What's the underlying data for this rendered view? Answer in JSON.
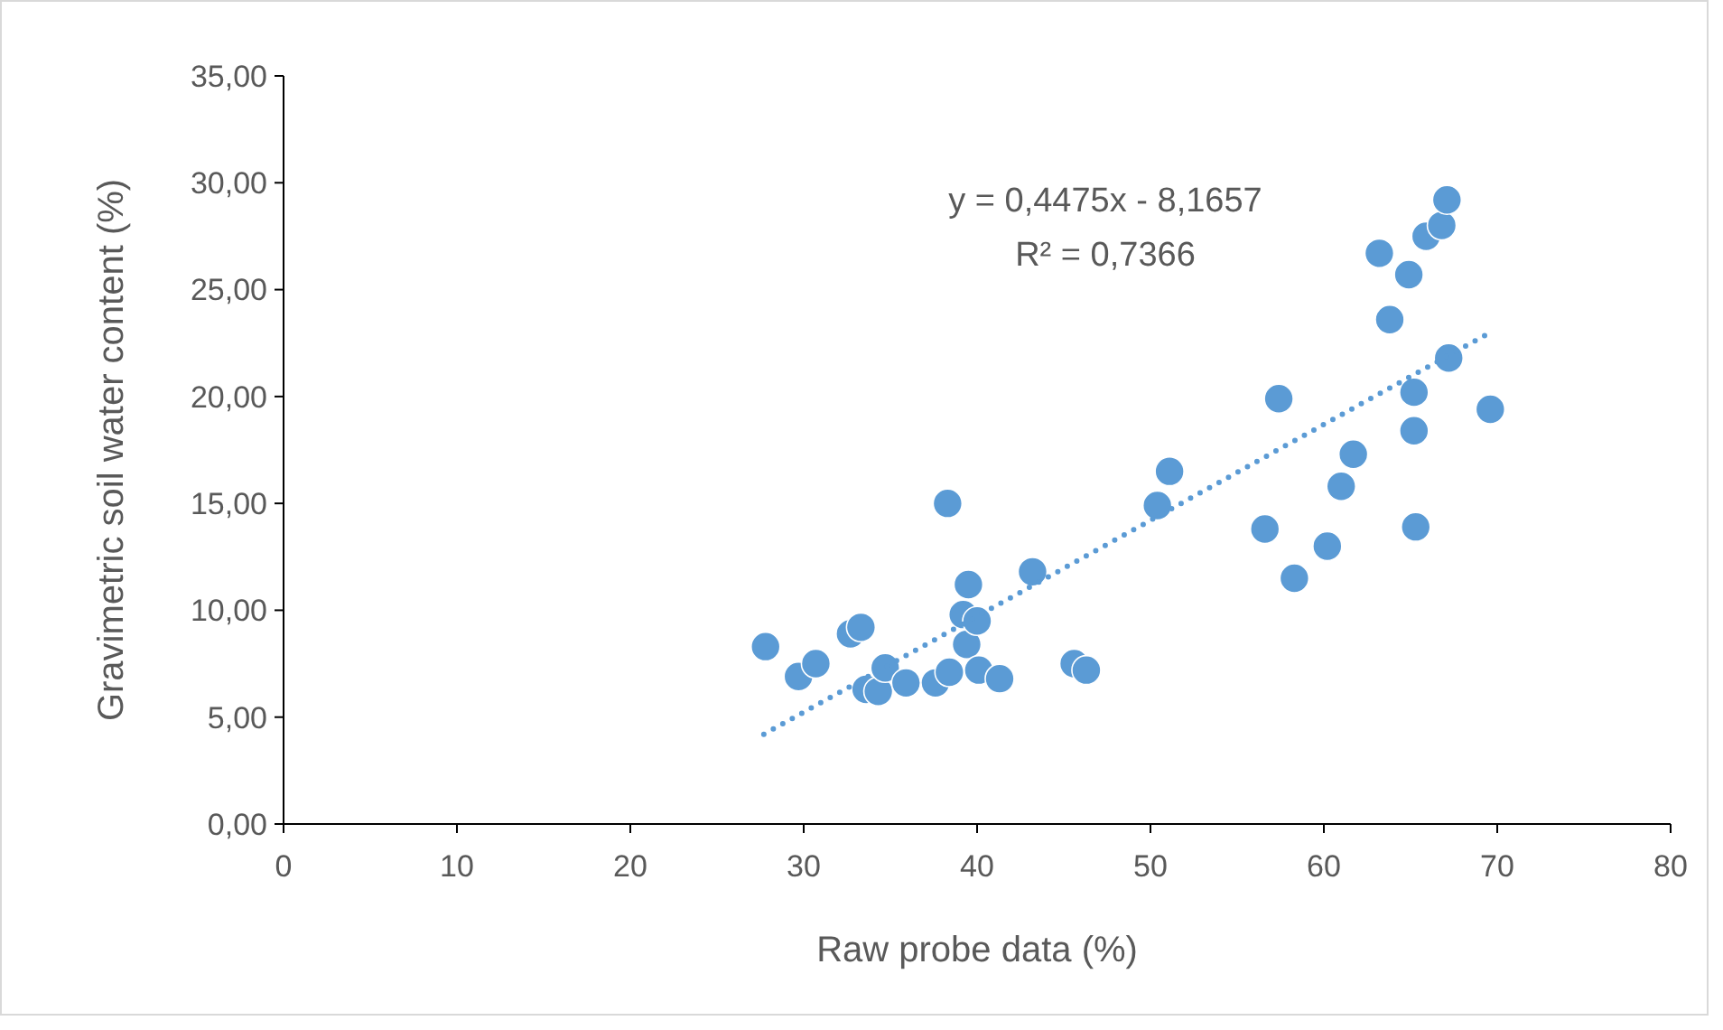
{
  "chart_data": {
    "type": "scatter",
    "xlabel": "Raw probe data (%)",
    "ylabel": "Gravimetric soil water content (%)",
    "xlim": [
      0,
      80
    ],
    "xticks": [
      0,
      10,
      20,
      30,
      40,
      50,
      60,
      70,
      80
    ],
    "ylim": [
      0,
      35
    ],
    "yticks": [
      {
        "value": 0,
        "label": "0,00"
      },
      {
        "value": 5,
        "label": "5,00"
      },
      {
        "value": 10,
        "label": "10,00"
      },
      {
        "value": 15,
        "label": "15,00"
      },
      {
        "value": 20,
        "label": "20,00"
      },
      {
        "value": 25,
        "label": "25,00"
      },
      {
        "value": 30,
        "label": "30,00"
      },
      {
        "value": 35,
        "label": "35,00"
      }
    ],
    "grid": false,
    "annotations": [
      "y = 0,4475x - 8,1657",
      "R² = 0,7366"
    ],
    "series": [
      {
        "color": "#5b9bd5",
        "marker": "circle",
        "x": [
          27.8,
          29.7,
          30.7,
          32.7,
          33.3,
          33.6,
          34.3,
          34.7,
          35.9,
          37.6,
          38.4,
          38.3,
          39.2,
          39.5,
          39.4,
          40.0,
          40.1,
          41.3,
          43.2,
          45.6,
          46.3,
          50.4,
          51.1,
          56.6,
          57.4,
          58.3,
          60.2,
          61.0,
          61.7,
          63.2,
          63.8,
          64.9,
          65.2,
          65.2,
          65.3,
          65.9,
          66.8,
          67.1,
          67.2,
          69.6
        ],
        "values": [
          8.3,
          6.9,
          7.5,
          8.9,
          9.2,
          6.3,
          6.2,
          7.3,
          6.6,
          6.6,
          7.1,
          15.0,
          9.8,
          11.2,
          8.4,
          9.5,
          7.2,
          6.8,
          11.8,
          7.5,
          7.2,
          14.9,
          16.5,
          13.8,
          19.9,
          11.5,
          13.0,
          15.8,
          17.3,
          26.7,
          23.6,
          25.7,
          20.2,
          18.4,
          13.9,
          27.5,
          28.0,
          29.2,
          21.8,
          19.4
        ]
      },
      {
        "type": "line",
        "color": "#5b9bd5",
        "line_style": "dotted",
        "marker": "none",
        "x": [
          27.7,
          69.6
        ],
        "values": [
          4.2,
          23.0
        ]
      }
    ]
  }
}
